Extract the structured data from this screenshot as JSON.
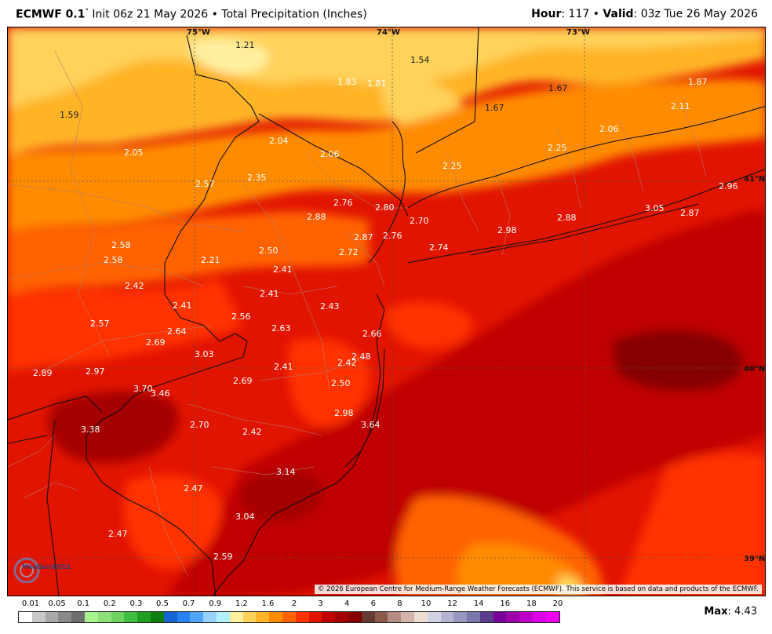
{
  "header": {
    "model": "ECMWF 0.1",
    "degree": "°",
    "init": " Init 06z 21 May 2026 • Total Precipitation (Inches)",
    "hour_label": "Hour",
    "hour_value": ": 117 • ",
    "valid_label": "Valid",
    "valid_value": ": 03z Tue 26 May 2026"
  },
  "grid_labels": {
    "lon_75": "75°W",
    "lon_74": "74°W",
    "lon_73": "73°W",
    "lat_41": "41°N",
    "lat_40": "40°N",
    "lat_39": "39°N"
  },
  "values": [
    "1.21",
    "1.54",
    "1.83",
    "1.81",
    "1.59",
    "1.67",
    "1.67",
    "1.87",
    "2.11",
    "2.06",
    "2.25",
    "2.04",
    "2.05",
    "2.06",
    "2.25",
    "2.96",
    "2.57",
    "2.35",
    "2.76",
    "2.80",
    "2.88",
    "2.70",
    "2.88",
    "2.87",
    "3.05",
    "2.58",
    "2.58",
    "2.50",
    "2.87",
    "2.76",
    "2.74",
    "2.98",
    "2.21",
    "2.72",
    "2.41",
    "2.42",
    "2.41",
    "2.41",
    "2.43",
    "2.57",
    "2.56",
    "2.64",
    "2.63",
    "2.66",
    "2.69",
    "3.03",
    "2.48",
    "2.89",
    "2.97",
    "2.41",
    "2.42",
    "3.70",
    "3.46",
    "2.69",
    "2.50",
    "2.98",
    "3.38",
    "2.70",
    "2.42",
    "3.64",
    "3.14",
    "2.47",
    "3.04",
    "2.47",
    "2.59"
  ],
  "value_colors": {
    "light_label": "#ffffff",
    "dark_label": "#1a1a1a"
  },
  "copyright": "© 2026 European Centre for Medium-Range Weather Forecasts (ECMWF). This service is based on data and products of the ECMWF.",
  "logo_text": "WeatherBELL",
  "legend": {
    "labels": [
      "0.01",
      "0.05",
      "0.1",
      "0.2",
      "0.3",
      "0.5",
      "0.7",
      "0.9",
      "1.2",
      "1.6",
      "2",
      "3",
      "4",
      "6",
      "8",
      "10",
      "12",
      "14",
      "16",
      "18",
      "20"
    ],
    "colors": [
      "#ffffff",
      "#c8c8c8",
      "#a8a8a8",
      "#888888",
      "#6e6e6e",
      "#a6f28f",
      "#8ee07a",
      "#6cd35e",
      "#3fbf3f",
      "#1f9e1f",
      "#0f7d0f",
      "#1464d2",
      "#2882f0",
      "#50a5f5",
      "#96d2fa",
      "#b4f0fa",
      "#fff0a0",
      "#ffd25a",
      "#ffb428",
      "#ff8c00",
      "#ff6400",
      "#ff3200",
      "#e11400",
      "#c00000",
      "#a50000",
      "#870000",
      "#643b32",
      "#8c5a4b",
      "#b48c82",
      "#d2b4aa",
      "#eedcd2",
      "#d2d2e6",
      "#b4b4d2",
      "#9696be",
      "#7878aa",
      "#5a3c8c",
      "#780096",
      "#9b00aa",
      "#be00c8",
      "#dc00e6",
      "#f000f0"
    ]
  },
  "max_label": "Max",
  "max_value": ": 4.43"
}
